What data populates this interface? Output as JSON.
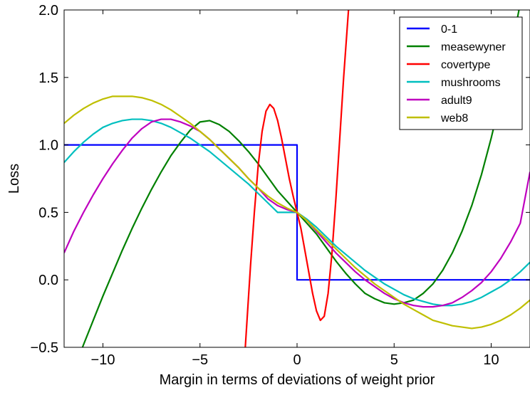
{
  "chart_data": {
    "type": "line",
    "title": "",
    "xlabel": "Margin in terms of deviations of weight prior",
    "ylabel": "Loss",
    "xlim": [
      -12,
      12
    ],
    "ylim": [
      -0.5,
      2.0
    ],
    "xticks": [
      -10,
      -5,
      0,
      5,
      10
    ],
    "xtick_labels": [
      "−10",
      "−5",
      "0",
      "5",
      "10"
    ],
    "yticks": [
      -0.5,
      0.0,
      0.5,
      1.0,
      1.5,
      2.0
    ],
    "ytick_labels": [
      "−0.5",
      "0.0",
      "0.5",
      "1.0",
      "1.5",
      "2.0"
    ],
    "grid": false,
    "legend_position": "top-right",
    "series": [
      {
        "name": "0-1",
        "color": "#0000ff",
        "x": [
          -12,
          0,
          0,
          12
        ],
        "y": [
          1.0,
          1.0,
          0.0,
          0.0
        ]
      },
      {
        "name": "measewyner",
        "color": "#008000",
        "x": [
          -12,
          -11.5,
          -11,
          -10.5,
          -10,
          -9.5,
          -9,
          -8.5,
          -8,
          -7.5,
          -7,
          -6.5,
          -6,
          -5.5,
          -5,
          -4.5,
          -4,
          -3.5,
          -3,
          -2.5,
          -2,
          -1.5,
          -1,
          -0.5,
          0,
          0.5,
          1,
          1.5,
          2,
          2.5,
          3,
          3.5,
          4,
          4.5,
          5,
          5.5,
          6,
          6.5,
          7,
          7.5,
          8,
          8.5,
          9,
          9.5,
          10,
          10.5,
          11,
          11.5,
          12
        ],
        "y": [
          -0.85,
          -0.67,
          -0.48,
          -0.3,
          -0.12,
          0.05,
          0.22,
          0.38,
          0.53,
          0.67,
          0.8,
          0.92,
          1.02,
          1.11,
          1.17,
          1.18,
          1.15,
          1.1,
          1.03,
          0.95,
          0.86,
          0.76,
          0.66,
          0.58,
          0.5,
          0.42,
          0.34,
          0.24,
          0.14,
          0.05,
          -0.03,
          -0.1,
          -0.14,
          -0.17,
          -0.18,
          -0.17,
          -0.15,
          -0.1,
          -0.03,
          0.07,
          0.2,
          0.36,
          0.55,
          0.78,
          1.05,
          1.35,
          1.68,
          2.05,
          2.45
        ]
      },
      {
        "name": "covertype",
        "color": "#ff0000",
        "x": [
          -2.8,
          -2.6,
          -2.4,
          -2.2,
          -2.0,
          -1.8,
          -1.6,
          -1.4,
          -1.2,
          -1.0,
          -0.8,
          -0.6,
          -0.4,
          -0.2,
          0.0,
          0.2,
          0.4,
          0.6,
          0.8,
          1.0,
          1.2,
          1.4,
          1.6,
          1.8,
          2.0,
          2.2,
          2.4,
          2.6,
          2.8
        ],
        "y": [
          -0.8,
          -0.35,
          0.1,
          0.5,
          0.85,
          1.1,
          1.25,
          1.3,
          1.27,
          1.18,
          1.05,
          0.9,
          0.75,
          0.62,
          0.5,
          0.38,
          0.22,
          0.06,
          -0.1,
          -0.23,
          -0.3,
          -0.27,
          -0.1,
          0.2,
          0.6,
          1.05,
          1.5,
          1.9,
          2.3
        ]
      },
      {
        "name": "mushrooms",
        "color": "#00bfbf",
        "x": [
          -12,
          -11.5,
          -11,
          -10.5,
          -10,
          -9.5,
          -9,
          -8.5,
          -8,
          -7.5,
          -7,
          -6.5,
          -6,
          -5.5,
          -5,
          -4.5,
          -4,
          -3.5,
          -3,
          -2.5,
          -2,
          -1.5,
          -1,
          -0.5,
          0,
          0.5,
          1,
          1.5,
          2,
          2.5,
          3,
          3.5,
          4,
          4.5,
          5,
          5.5,
          6,
          6.5,
          7,
          7.5,
          8,
          8.5,
          9,
          9.5,
          10,
          10.5,
          11,
          11.5,
          12
        ],
        "y": [
          0.87,
          0.95,
          1.02,
          1.08,
          1.13,
          1.16,
          1.18,
          1.19,
          1.19,
          1.18,
          1.16,
          1.13,
          1.09,
          1.05,
          1.0,
          0.95,
          0.89,
          0.83,
          0.77,
          0.71,
          0.64,
          0.57,
          0.5,
          0.5,
          0.5,
          0.45,
          0.39,
          0.32,
          0.25,
          0.19,
          0.13,
          0.07,
          0.02,
          -0.03,
          -0.07,
          -0.11,
          -0.14,
          -0.16,
          -0.18,
          -0.19,
          -0.19,
          -0.18,
          -0.16,
          -0.13,
          -0.09,
          -0.05,
          0.0,
          0.06,
          0.13
        ]
      },
      {
        "name": "adult9",
        "color": "#bf00bf",
        "x": [
          -12,
          -11.5,
          -11,
          -10.5,
          -10,
          -9.5,
          -9,
          -8.5,
          -8,
          -7.5,
          -7,
          -6.5,
          -6,
          -5.5,
          -5,
          -4.5,
          -4,
          -3.5,
          -3,
          -2.5,
          -2,
          -1.5,
          -1,
          -0.5,
          0,
          0.5,
          1,
          1.5,
          2,
          2.5,
          3,
          3.5,
          4,
          4.5,
          5,
          5.5,
          6,
          6.5,
          7,
          7.5,
          8,
          8.5,
          9,
          9.5,
          10,
          10.5,
          11,
          11.5,
          12
        ],
        "y": [
          0.2,
          0.36,
          0.5,
          0.63,
          0.75,
          0.86,
          0.96,
          1.05,
          1.12,
          1.17,
          1.19,
          1.19,
          1.17,
          1.14,
          1.1,
          1.04,
          0.97,
          0.9,
          0.83,
          0.75,
          0.68,
          0.6,
          0.55,
          0.52,
          0.5,
          0.44,
          0.36,
          0.28,
          0.2,
          0.13,
          0.06,
          0.0,
          -0.05,
          -0.1,
          -0.14,
          -0.17,
          -0.19,
          -0.2,
          -0.2,
          -0.19,
          -0.17,
          -0.13,
          -0.08,
          -0.02,
          0.06,
          0.16,
          0.28,
          0.42,
          0.8
        ]
      },
      {
        "name": "web8",
        "color": "#bfbf00",
        "x": [
          -12,
          -11.5,
          -11,
          -10.5,
          -10,
          -9.5,
          -9,
          -8.5,
          -8,
          -7.5,
          -7,
          -6.5,
          -6,
          -5.5,
          -5,
          -4.5,
          -4,
          -3.5,
          -3,
          -2.5,
          -2,
          -1.5,
          -1,
          -0.5,
          0,
          0.5,
          1,
          1.5,
          2,
          2.5,
          3,
          3.5,
          4,
          4.5,
          5,
          5.5,
          6,
          6.5,
          7,
          7.5,
          8,
          8.5,
          9,
          9.5,
          10,
          10.5,
          11,
          11.5,
          12
        ],
        "y": [
          1.16,
          1.22,
          1.27,
          1.31,
          1.34,
          1.36,
          1.36,
          1.36,
          1.35,
          1.33,
          1.3,
          1.26,
          1.21,
          1.16,
          1.1,
          1.04,
          0.97,
          0.9,
          0.83,
          0.75,
          0.68,
          0.62,
          0.57,
          0.53,
          0.5,
          0.44,
          0.37,
          0.3,
          0.23,
          0.16,
          0.09,
          0.03,
          -0.03,
          -0.08,
          -0.13,
          -0.18,
          -0.22,
          -0.26,
          -0.3,
          -0.32,
          -0.34,
          -0.35,
          -0.36,
          -0.35,
          -0.33,
          -0.3,
          -0.26,
          -0.21,
          -0.15
        ]
      }
    ]
  }
}
